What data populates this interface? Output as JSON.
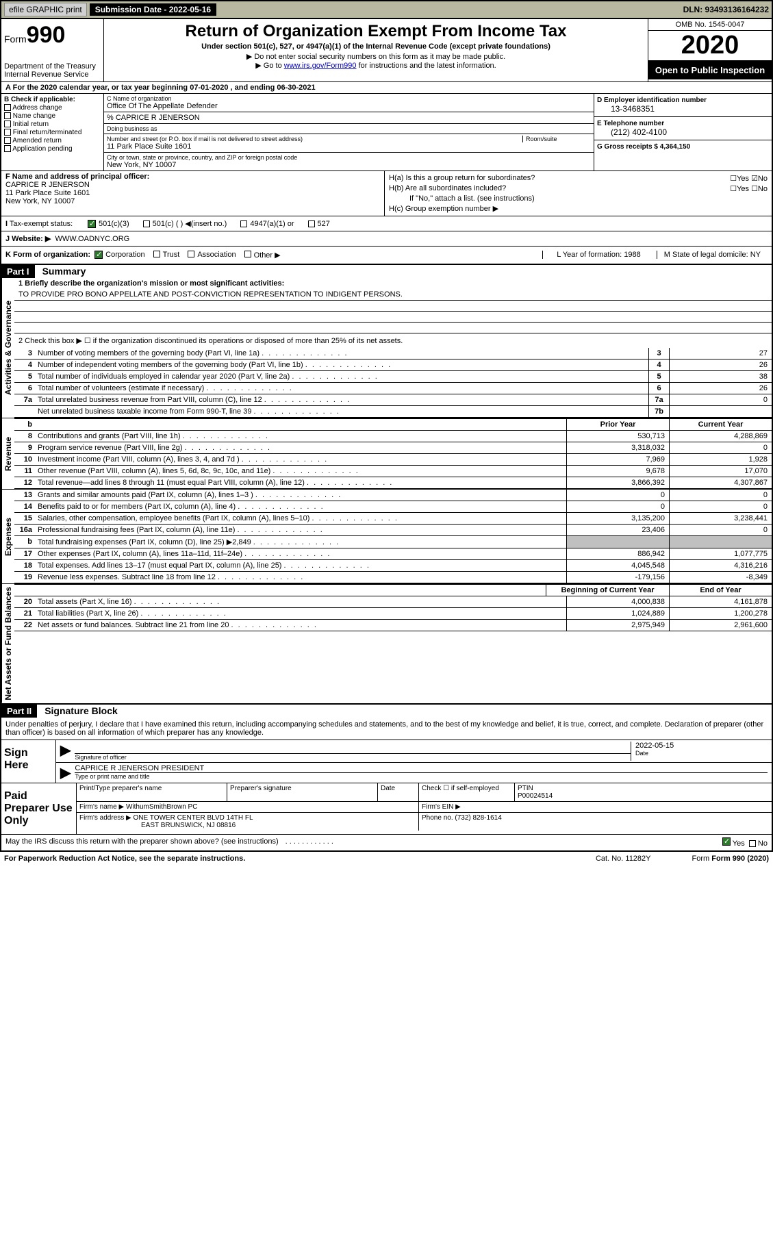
{
  "top_bar": {
    "efile": "efile GRAPHIC print",
    "submission_label": "Submission Date - 2022-05-16",
    "dln": "DLN: 93493136164232"
  },
  "header": {
    "form_label": "Form",
    "form_number": "990",
    "dept1": "Department of the Treasury",
    "dept2": "Internal Revenue Service",
    "title": "Return of Organization Exempt From Income Tax",
    "subtitle": "Under section 501(c), 527, or 4947(a)(1) of the Internal Revenue Code (except private foundations)",
    "note1": "▶ Do not enter social security numbers on this form as it may be made public.",
    "note2_pre": "▶ Go to ",
    "note2_link": "www.irs.gov/Form990",
    "note2_post": " for instructions and the latest information.",
    "omb": "OMB No. 1545-0047",
    "year": "2020",
    "inspection": "Open to Public Inspection"
  },
  "line_a": "For the 2020 calendar year, or tax year beginning 07-01-2020   , and ending 06-30-2021",
  "box_b": {
    "label": "B Check if applicable:",
    "opts": [
      "Address change",
      "Name change",
      "Initial return",
      "Final return/terminated",
      "Amended return",
      "Application pending"
    ]
  },
  "box_c": {
    "name_label": "C Name of organization",
    "name": "Office Of The Appellate Defender",
    "care_of": "% CAPRICE R JENERSON",
    "dba_label": "Doing business as",
    "addr_label": "Number and street (or P.O. box if mail is not delivered to street address)",
    "room_label": "Room/suite",
    "addr": "11 Park Place Suite 1601",
    "city_label": "City or town, state or province, country, and ZIP or foreign postal code",
    "city": "New York, NY  10007"
  },
  "box_d": {
    "ein_label": "D Employer identification number",
    "ein": "13-3468351",
    "phone_label": "E Telephone number",
    "phone": "(212) 402-4100",
    "gross_label": "G Gross receipts $ 4,364,150"
  },
  "box_f": {
    "label": "F Name and address of principal officer:",
    "name": "CAPRICE R JENERSON",
    "addr1": "11 Park Place Suite 1601",
    "addr2": "New York, NY  10007"
  },
  "box_h": {
    "ha": "H(a)  Is this a group return for subordinates?",
    "hb": "H(b)  Are all subordinates included?",
    "hb_note": "If \"No,\" attach a list. (see instructions)",
    "hc": "H(c)  Group exemption number ▶"
  },
  "tax_status": {
    "label": "Tax-exempt status:",
    "opts": [
      "501(c)(3)",
      "501(c) (  ) ◀(insert no.)",
      "4947(a)(1) or",
      "527"
    ]
  },
  "website": {
    "label": "J  Website: ▶",
    "url": "WWW.OADNYC.ORG"
  },
  "row_k": {
    "label": "K Form of organization:",
    "opts": [
      "Corporation",
      "Trust",
      "Association",
      "Other ▶"
    ],
    "year_formed_label": "L Year of formation: 1988",
    "domicile_label": "M State of legal domicile: NY"
  },
  "part1": {
    "header": "Part I",
    "title": "Summary",
    "vert_gov": "Activities & Governance",
    "vert_rev": "Revenue",
    "vert_exp": "Expenses",
    "vert_net": "Net Assets or Fund Balances",
    "line1_label": "1  Briefly describe the organization's mission or most significant activities:",
    "line1_text": "TO PROVIDE PRO BONO APPELLATE AND POST-CONVICTION REPRESENTATION TO INDIGENT PERSONS.",
    "line2": "2   Check this box ▶ ☐  if the organization discontinued its operations or disposed of more than 25% of its net assets.",
    "rows_gov": [
      {
        "n": "3",
        "t": "Number of voting members of the governing body (Part VI, line 1a)",
        "b": "3",
        "v": "27"
      },
      {
        "n": "4",
        "t": "Number of independent voting members of the governing body (Part VI, line 1b)",
        "b": "4",
        "v": "26"
      },
      {
        "n": "5",
        "t": "Total number of individuals employed in calendar year 2020 (Part V, line 2a)",
        "b": "5",
        "v": "38"
      },
      {
        "n": "6",
        "t": "Total number of volunteers (estimate if necessary)",
        "b": "6",
        "v": "26"
      },
      {
        "n": "7a",
        "t": "Total unrelated business revenue from Part VIII, column (C), line 12",
        "b": "7a",
        "v": "0"
      },
      {
        "n": "",
        "t": "Net unrelated business taxable income from Form 990-T, line 39",
        "b": "7b",
        "v": ""
      }
    ],
    "col_headers": {
      "b": "b",
      "prior": "Prior Year",
      "current": "Current Year"
    },
    "rows_rev": [
      {
        "n": "8",
        "t": "Contributions and grants (Part VIII, line 1h)",
        "p": "530,713",
        "c": "4,288,869"
      },
      {
        "n": "9",
        "t": "Program service revenue (Part VIII, line 2g)",
        "p": "3,318,032",
        "c": "0"
      },
      {
        "n": "10",
        "t": "Investment income (Part VIII, column (A), lines 3, 4, and 7d )",
        "p": "7,969",
        "c": "1,928"
      },
      {
        "n": "11",
        "t": "Other revenue (Part VIII, column (A), lines 5, 6d, 8c, 9c, 10c, and 11e)",
        "p": "9,678",
        "c": "17,070"
      },
      {
        "n": "12",
        "t": "Total revenue—add lines 8 through 11 (must equal Part VIII, column (A), line 12)",
        "p": "3,866,392",
        "c": "4,307,867"
      }
    ],
    "rows_exp": [
      {
        "n": "13",
        "t": "Grants and similar amounts paid (Part IX, column (A), lines 1–3 )",
        "p": "0",
        "c": "0"
      },
      {
        "n": "14",
        "t": "Benefits paid to or for members (Part IX, column (A), line 4)",
        "p": "0",
        "c": "0"
      },
      {
        "n": "15",
        "t": "Salaries, other compensation, employee benefits (Part IX, column (A), lines 5–10)",
        "p": "3,135,200",
        "c": "3,238,441"
      },
      {
        "n": "16a",
        "t": "Professional fundraising fees (Part IX, column (A), line 11e)",
        "p": "23,406",
        "c": "0"
      },
      {
        "n": "b",
        "t": "Total fundraising expenses (Part IX, column (D), line 25) ▶2,849",
        "p": "grey",
        "c": "grey"
      },
      {
        "n": "17",
        "t": "Other expenses (Part IX, column (A), lines 11a–11d, 11f–24e)",
        "p": "886,942",
        "c": "1,077,775"
      },
      {
        "n": "18",
        "t": "Total expenses. Add lines 13–17 (must equal Part IX, column (A), line 25)",
        "p": "4,045,548",
        "c": "4,316,216"
      },
      {
        "n": "19",
        "t": "Revenue less expenses. Subtract line 18 from line 12",
        "p": "-179,156",
        "c": "-8,349"
      }
    ],
    "net_headers": {
      "begin": "Beginning of Current Year",
      "end": "End of Year"
    },
    "rows_net": [
      {
        "n": "20",
        "t": "Total assets (Part X, line 16)",
        "p": "4,000,838",
        "c": "4,161,878"
      },
      {
        "n": "21",
        "t": "Total liabilities (Part X, line 26)",
        "p": "1,024,889",
        "c": "1,200,278"
      },
      {
        "n": "22",
        "t": "Net assets or fund balances. Subtract line 21 from line 20",
        "p": "2,975,949",
        "c": "2,961,600"
      }
    ]
  },
  "part2": {
    "header": "Part II",
    "title": "Signature Block",
    "perjury": "Under penalties of perjury, I declare that I have examined this return, including accompanying schedules and statements, and to the best of my knowledge and belief, it is true, correct, and complete. Declaration of preparer (other than officer) is based on all information of which preparer has any knowledge.",
    "sign_here": "Sign Here",
    "sig_officer": "Signature of officer",
    "date_label": "Date",
    "date_val": "2022-05-15",
    "officer_name": "CAPRICE R JENERSON  PRESIDENT",
    "type_name": "Type or print name and title",
    "paid_label": "Paid Preparer Use Only",
    "prep_name_h": "Print/Type preparer's name",
    "prep_sig_h": "Preparer's signature",
    "prep_date_h": "Date",
    "self_emp": "Check ☐ if self-employed",
    "ptin_label": "PTIN",
    "ptin": "P00024514",
    "firm_name_label": "Firm's name    ▶",
    "firm_name": "WithumSmithBrown PC",
    "firm_ein_label": "Firm's EIN ▶",
    "firm_addr_label": "Firm's address ▶",
    "firm_addr1": "ONE TOWER CENTER BLVD 14TH FL",
    "firm_addr2": "EAST BRUNSWICK, NJ  08816",
    "firm_phone_label": "Phone no. (732) 828-1614",
    "discuss": "May the IRS discuss this return with the preparer shown above? (see instructions)",
    "yes_no": "☑ Yes  ☐ No"
  },
  "footer": {
    "paperwork": "For Paperwork Reduction Act Notice, see the separate instructions.",
    "cat": "Cat. No. 11282Y",
    "form": "Form 990 (2020)"
  },
  "colors": {
    "topbar_bg": "#b8b8a0",
    "black": "#000000",
    "green_check": "#2a7a2a",
    "grey_cell": "#c0c0c0",
    "link": "#0000cc"
  }
}
